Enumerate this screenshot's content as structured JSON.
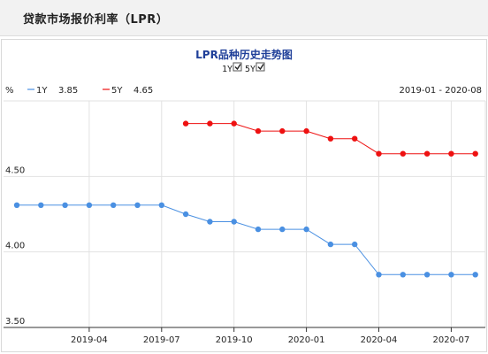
{
  "header": {
    "title": "贷款市场报价利率（LPR）"
  },
  "chart_data": {
    "type": "line",
    "title": "LPR品种历史走势图",
    "unit": "%",
    "date_range": "2019-01 - 2020-08",
    "toggles": [
      {
        "label": "1Y",
        "checked": true
      },
      {
        "label": "5Y",
        "checked": true
      }
    ],
    "x_tick_labels": [
      "2019-04",
      "2019-07",
      "2019-10",
      "2020-01",
      "2020-04",
      "2020-07"
    ],
    "y_tick_labels": [
      "3.50",
      "4.00",
      "4.50"
    ],
    "ylim": [
      3.5,
      5.0
    ],
    "grid": true,
    "series": [
      {
        "name": "1Y",
        "latest": "3.85",
        "color": "#4a90e2",
        "points": [
          {
            "x": "2019-01",
            "y": 4.31
          },
          {
            "x": "2019-02",
            "y": 4.31
          },
          {
            "x": "2019-03",
            "y": 4.31
          },
          {
            "x": "2019-04",
            "y": 4.31
          },
          {
            "x": "2019-05",
            "y": 4.31
          },
          {
            "x": "2019-06",
            "y": 4.31
          },
          {
            "x": "2019-07",
            "y": 4.31
          },
          {
            "x": "2019-08",
            "y": 4.25
          },
          {
            "x": "2019-09",
            "y": 4.2
          },
          {
            "x": "2019-10",
            "y": 4.2
          },
          {
            "x": "2019-11",
            "y": 4.15
          },
          {
            "x": "2019-12",
            "y": 4.15
          },
          {
            "x": "2020-01",
            "y": 4.15
          },
          {
            "x": "2020-02",
            "y": 4.05
          },
          {
            "x": "2020-03",
            "y": 4.05
          },
          {
            "x": "2020-04",
            "y": 3.85
          },
          {
            "x": "2020-05",
            "y": 3.85
          },
          {
            "x": "2020-06",
            "y": 3.85
          },
          {
            "x": "2020-07",
            "y": 3.85
          },
          {
            "x": "2020-08",
            "y": 3.85
          }
        ]
      },
      {
        "name": "5Y",
        "latest": "4.65",
        "color": "#ee1111",
        "points": [
          {
            "x": "2019-08",
            "y": 4.85
          },
          {
            "x": "2019-09",
            "y": 4.85
          },
          {
            "x": "2019-10",
            "y": 4.85
          },
          {
            "x": "2019-11",
            "y": 4.8
          },
          {
            "x": "2019-12",
            "y": 4.8
          },
          {
            "x": "2020-01",
            "y": 4.8
          },
          {
            "x": "2020-02",
            "y": 4.75
          },
          {
            "x": "2020-03",
            "y": 4.75
          },
          {
            "x": "2020-04",
            "y": 4.65
          },
          {
            "x": "2020-05",
            "y": 4.65
          },
          {
            "x": "2020-06",
            "y": 4.65
          },
          {
            "x": "2020-07",
            "y": 4.65
          },
          {
            "x": "2020-08",
            "y": 4.65
          }
        ]
      }
    ]
  }
}
